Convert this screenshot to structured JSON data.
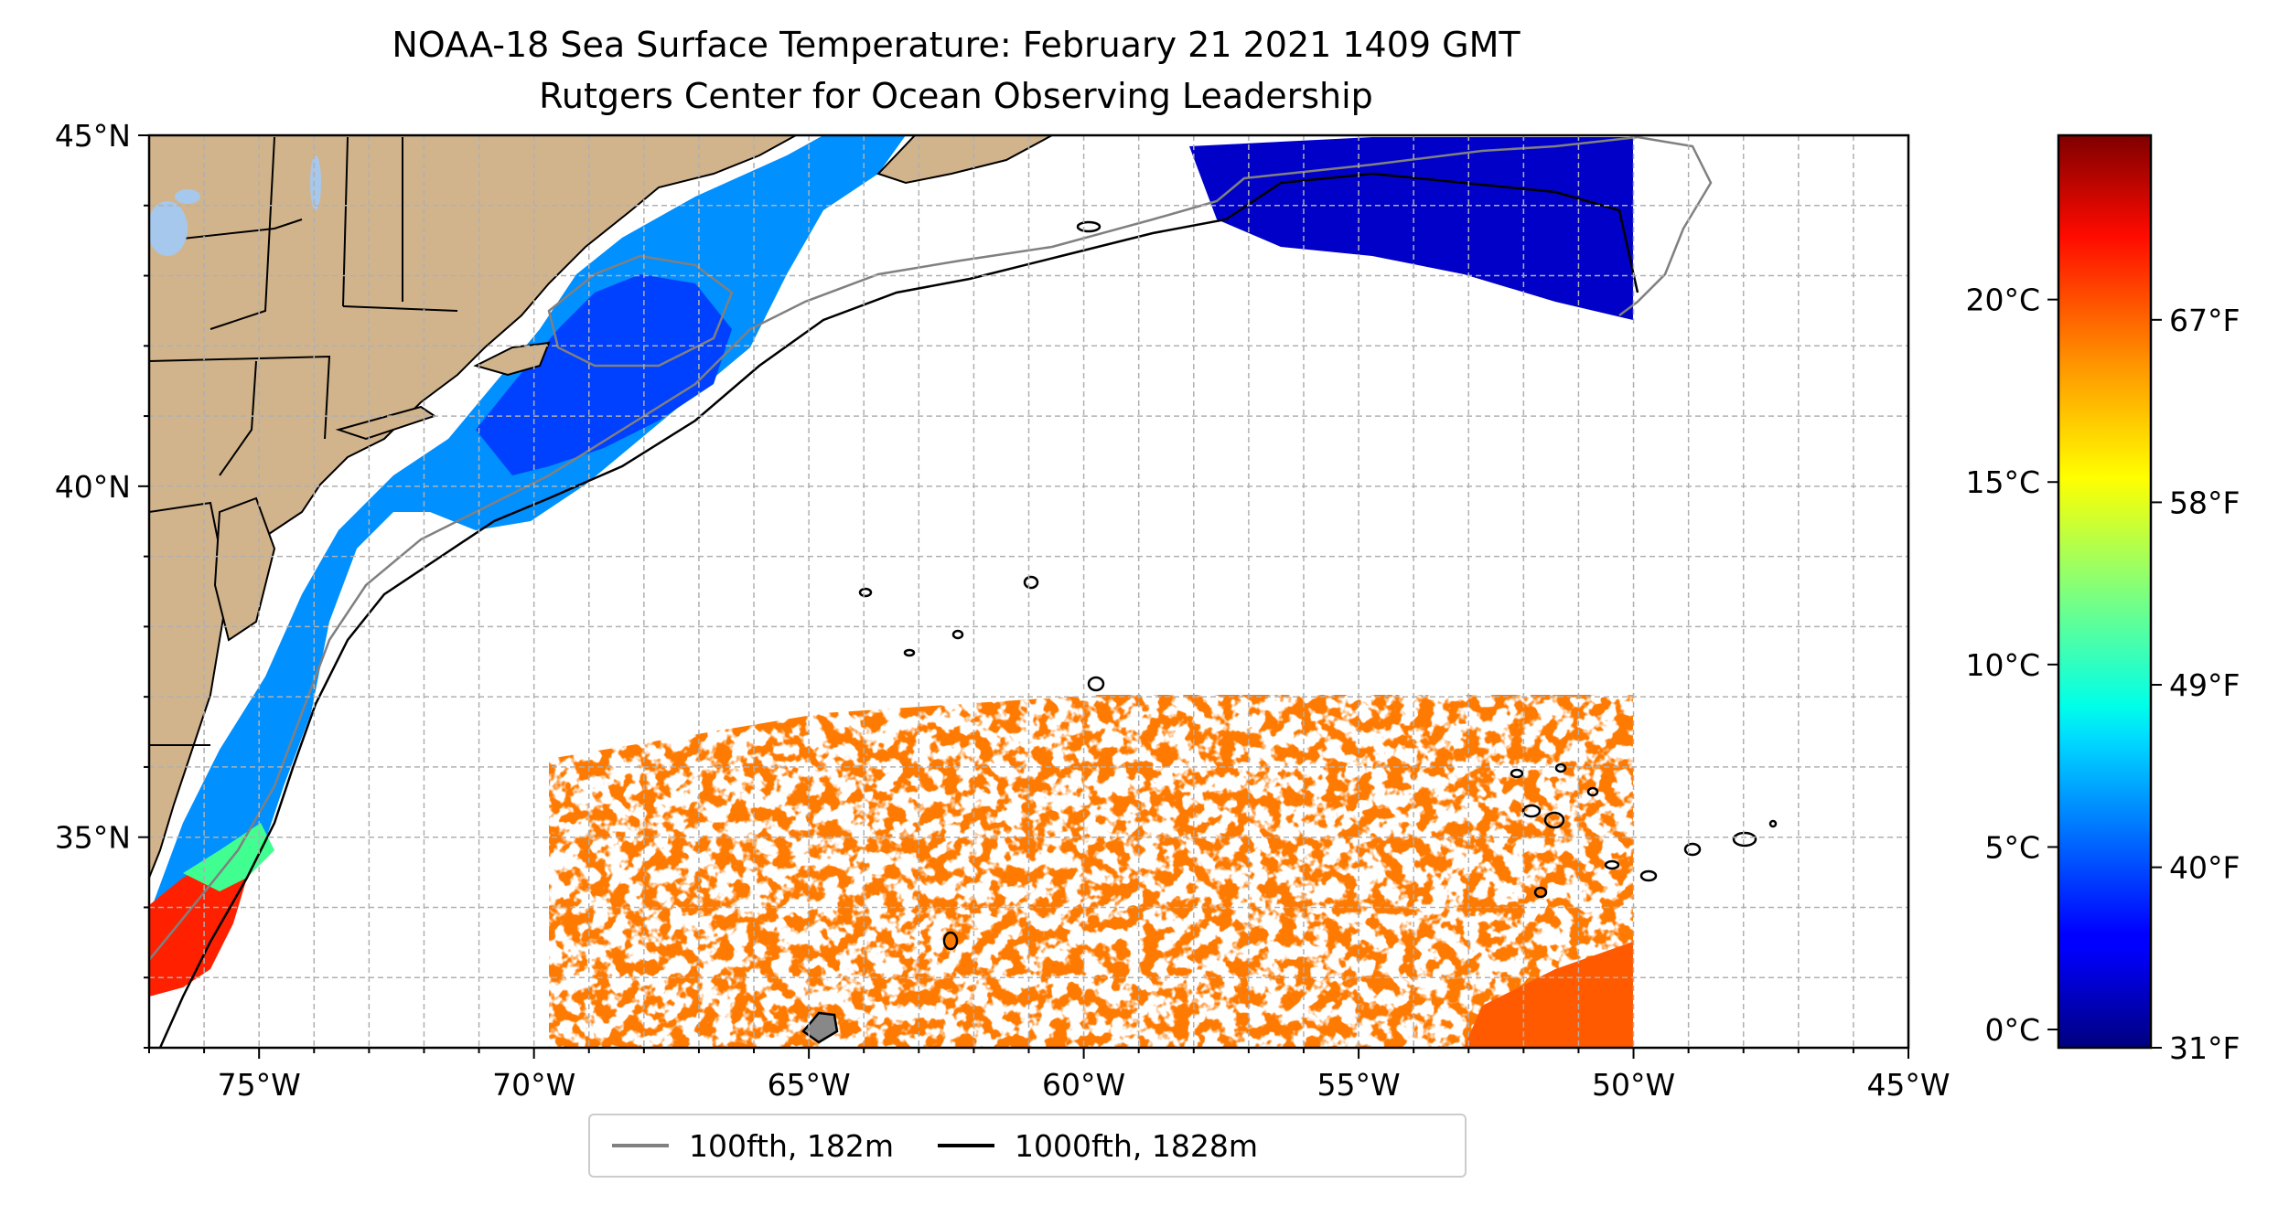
{
  "title": "NOAA-18 Sea Surface Temperature: February 21 2021 1409 GMT",
  "subtitle": "Rutgers Center for Ocean Observing Leadership",
  "map": {
    "lon_range": [
      -77,
      -45
    ],
    "lat_range": [
      32,
      45
    ],
    "x_ticks": [
      {
        "lon": -75,
        "label": "75°W"
      },
      {
        "lon": -70,
        "label": "70°W"
      },
      {
        "lon": -65,
        "label": "65°W"
      },
      {
        "lon": -60,
        "label": "60°W"
      },
      {
        "lon": -55,
        "label": "55°W"
      },
      {
        "lon": -50,
        "label": "50°W"
      },
      {
        "lon": -45,
        "label": "45°W"
      }
    ],
    "y_ticks": [
      {
        "lat": 45,
        "label": "45°N"
      },
      {
        "lat": 40,
        "label": "40°N"
      },
      {
        "lat": 35,
        "label": "35°N"
      }
    ],
    "grid": true,
    "land_color": "#d2b48c",
    "lake_color": "#a6c8ec",
    "data_coverage_east_lon": -50
  },
  "colorbar": {
    "colormap": "jet",
    "range_c": [
      -0.5,
      24.5
    ],
    "celsius_ticks": [
      {
        "value": 0,
        "label": "0°C"
      },
      {
        "value": 5,
        "label": "5°C"
      },
      {
        "value": 10,
        "label": "10°C"
      },
      {
        "value": 15,
        "label": "15°C"
      },
      {
        "value": 20,
        "label": "20°C"
      }
    ],
    "fahrenheit_ticks": [
      {
        "value": 31,
        "label": "31°F"
      },
      {
        "value": 40,
        "label": "40°F"
      },
      {
        "value": 49,
        "label": "49°F"
      },
      {
        "value": 58,
        "label": "58°F"
      },
      {
        "value": 67,
        "label": "67°F"
      }
    ]
  },
  "legend": {
    "placement": "bottom-center",
    "items": [
      {
        "label": "100fth, 182m",
        "color": "#808080"
      },
      {
        "label": "1000fth, 1828m",
        "color": "#000000"
      }
    ]
  }
}
